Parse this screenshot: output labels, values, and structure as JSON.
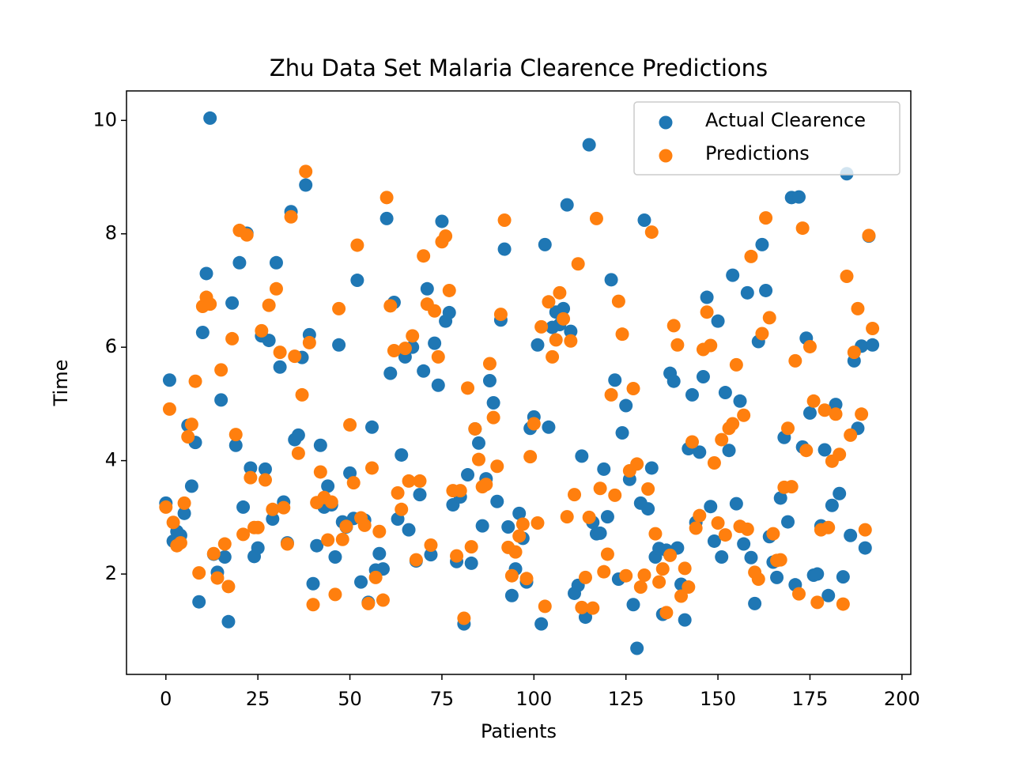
{
  "chart_data": {
    "type": "scatter",
    "title": "Zhu Data Set Malaria Clearence Predictions",
    "x_label": "Patients",
    "y_label": "Time",
    "xlim": [
      -10.7,
      202.4
    ],
    "ylim": [
      0.23,
      10.52
    ],
    "xticks": [
      0,
      25,
      50,
      75,
      100,
      125,
      150,
      175,
      200
    ],
    "yticks": [
      2,
      4,
      6,
      8,
      10
    ],
    "legend": "upper right",
    "x": [
      0,
      1,
      2,
      3,
      4,
      5,
      6,
      7,
      8,
      9,
      10,
      11,
      12,
      13,
      14,
      15,
      16,
      17,
      18,
      19,
      20,
      21,
      22,
      23,
      24,
      25,
      26,
      27,
      28,
      29,
      30,
      31,
      32,
      33,
      34,
      35,
      36,
      37,
      38,
      39,
      40,
      41,
      42,
      43,
      44,
      45,
      46,
      47,
      48,
      49,
      50,
      51,
      52,
      53,
      54,
      55,
      56,
      57,
      58,
      59,
      60,
      61,
      62,
      63,
      64,
      65,
      66,
      67,
      68,
      69,
      70,
      71,
      72,
      73,
      74,
      75,
      76,
      77,
      78,
      79,
      80,
      81,
      82,
      83,
      84,
      85,
      86,
      87,
      88,
      89,
      90,
      91,
      92,
      93,
      94,
      95,
      96,
      97,
      98,
      99,
      100,
      101,
      102,
      103,
      104,
      105,
      106,
      107,
      108,
      109,
      110,
      111,
      112,
      113,
      114,
      115,
      116,
      117,
      118,
      119,
      120,
      121,
      122,
      123,
      124,
      125,
      126,
      127,
      128,
      129,
      130,
      131,
      132,
      133,
      134,
      135,
      136,
      137,
      138,
      139,
      140,
      141,
      142,
      143,
      144,
      145,
      146,
      147,
      148,
      149,
      150,
      151,
      152,
      153,
      154,
      155,
      156,
      157,
      158,
      159,
      160,
      161,
      162,
      163,
      164,
      165,
      166,
      167,
      168,
      169,
      170,
      171,
      172,
      173,
      174,
      175,
      176,
      177,
      178,
      179,
      180,
      181,
      182,
      183,
      184,
      185,
      186,
      187,
      188,
      189,
      190,
      191,
      192
    ],
    "series": [
      {
        "name": "Actual Clearence",
        "color": "#1f77b4",
        "values": [
          3.25,
          5.42,
          2.58,
          2.75,
          2.68,
          3.07,
          4.62,
          3.55,
          4.32,
          1.51,
          6.26,
          7.3,
          10.04,
          2.35,
          2.03,
          5.07,
          2.3,
          1.16,
          6.78,
          4.27,
          7.49,
          3.18,
          8.01,
          3.87,
          2.31,
          2.46,
          6.2,
          3.85,
          6.12,
          2.97,
          7.49,
          5.65,
          3.27,
          2.55,
          8.39,
          4.37,
          4.45,
          5.82,
          8.86,
          6.22,
          1.83,
          2.5,
          4.27,
          3.18,
          3.55,
          3.22,
          2.3,
          6.04,
          2.92,
          2.83,
          3.78,
          2.98,
          7.18,
          1.86,
          2.95,
          1.5,
          4.59,
          2.07,
          2.36,
          2.09,
          8.27,
          5.54,
          6.79,
          2.97,
          4.1,
          5.83,
          2.78,
          6.0,
          2.23,
          3.4,
          5.58,
          7.03,
          2.34,
          6.07,
          5.33,
          8.22,
          6.46,
          6.61,
          3.22,
          2.22,
          3.36,
          1.12,
          3.75,
          2.19,
          4.56,
          4.31,
          2.85,
          3.68,
          5.41,
          5.02,
          3.28,
          6.48,
          7.73,
          2.83,
          1.62,
          2.09,
          3.07,
          2.63,
          1.86,
          4.57,
          4.77,
          6.04,
          1.12,
          7.81,
          4.59,
          6.35,
          6.62,
          6.4,
          6.68,
          8.51,
          6.28,
          1.66,
          1.8,
          4.08,
          1.24,
          9.57,
          2.91,
          2.71,
          2.72,
          3.85,
          3.01,
          7.19,
          5.42,
          1.91,
          4.49,
          4.97,
          3.67,
          1.46,
          0.69,
          3.25,
          8.24,
          3.15,
          3.87,
          2.3,
          2.45,
          1.29,
          2.42,
          5.54,
          5.4,
          2.46,
          1.82,
          1.19,
          4.21,
          5.16,
          2.91,
          4.15,
          5.48,
          6.88,
          3.19,
          2.58,
          6.46,
          2.3,
          5.2,
          4.18,
          7.27,
          3.24,
          5.05,
          2.53,
          6.96,
          2.29,
          1.48,
          6.1,
          7.81,
          7.0,
          2.66,
          2.21,
          1.94,
          3.34,
          4.41,
          2.92,
          8.64,
          1.81,
          8.65,
          4.24,
          6.16,
          4.84,
          1.98,
          2.0,
          2.85,
          4.19,
          1.62,
          3.21,
          4.99,
          3.42,
          1.95,
          9.06,
          2.68,
          5.76,
          4.57,
          6.02,
          2.46,
          7.96,
          6.04
        ]
      },
      {
        "name": "Predictions",
        "color": "#ff7f0e",
        "values": [
          3.18,
          4.91,
          2.91,
          2.5,
          2.55,
          3.25,
          4.42,
          4.64,
          5.4,
          2.02,
          6.72,
          6.88,
          6.76,
          2.36,
          1.93,
          5.6,
          2.53,
          1.78,
          6.15,
          4.46,
          8.06,
          2.7,
          7.98,
          3.7,
          2.82,
          2.82,
          6.29,
          3.66,
          6.74,
          3.14,
          7.03,
          5.91,
          3.17,
          2.53,
          8.3,
          5.84,
          4.13,
          5.16,
          9.1,
          6.08,
          1.46,
          3.26,
          3.8,
          3.35,
          2.6,
          3.27,
          1.64,
          6.68,
          2.61,
          2.84,
          4.63,
          3.61,
          7.8,
          2.99,
          2.86,
          1.48,
          3.87,
          1.94,
          2.75,
          1.54,
          8.64,
          6.73,
          5.94,
          3.43,
          3.14,
          5.98,
          3.64,
          6.2,
          2.25,
          3.64,
          7.61,
          6.76,
          2.51,
          6.64,
          5.83,
          7.86,
          7.96,
          7.0,
          3.47,
          2.32,
          3.47,
          1.22,
          5.28,
          2.48,
          4.56,
          4.02,
          3.54,
          3.58,
          5.71,
          4.76,
          3.9,
          6.58,
          8.24,
          2.47,
          1.97,
          2.39,
          2.67,
          2.88,
          1.92,
          4.07,
          4.65,
          2.9,
          6.36,
          1.43,
          6.8,
          5.83,
          6.13,
          6.96,
          6.5,
          3.01,
          6.11,
          3.4,
          7.47,
          1.41,
          1.94,
          3.0,
          1.4,
          8.27,
          3.51,
          2.04,
          2.35,
          5.16,
          3.39,
          6.81,
          6.23,
          1.97,
          3.82,
          5.27,
          3.94,
          1.77,
          1.98,
          3.5,
          8.03,
          2.71,
          1.86,
          2.09,
          1.32,
          2.33,
          6.38,
          6.04,
          1.61,
          2.1,
          1.77,
          4.33,
          2.81,
          3.03,
          5.96,
          6.62,
          6.03,
          3.96,
          2.9,
          4.37,
          2.69,
          4.57,
          4.65,
          5.69,
          2.84,
          4.8,
          2.79,
          7.6,
          2.03,
          1.91,
          6.24,
          8.28,
          6.52,
          2.71,
          2.24,
          2.25,
          3.53,
          4.57,
          3.54,
          5.76,
          1.65,
          8.1,
          4.18,
          6.01,
          5.05,
          1.5,
          2.78,
          4.89,
          2.82,
          3.99,
          4.82,
          4.11,
          1.47,
          7.25,
          4.45,
          5.91,
          6.68,
          4.82,
          2.78,
          7.97,
          6.33
        ]
      }
    ]
  }
}
